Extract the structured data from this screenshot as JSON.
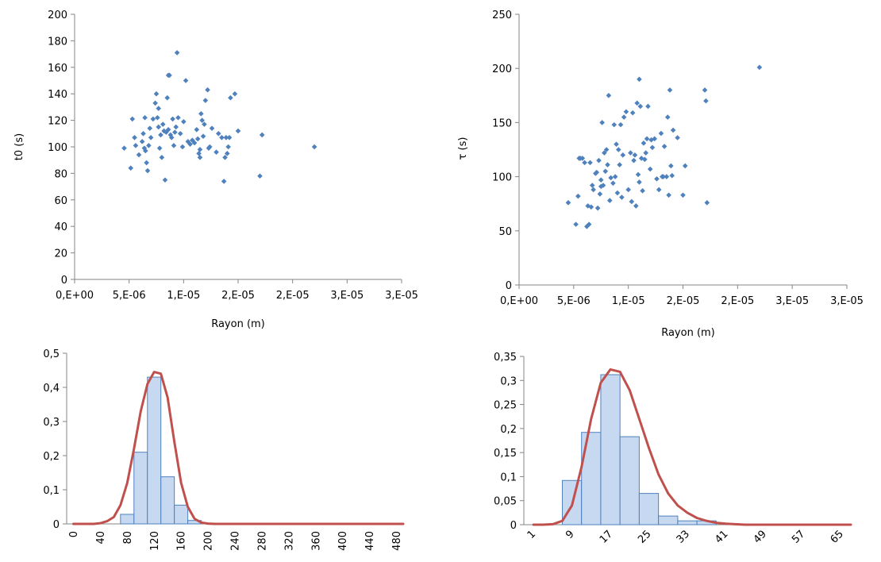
{
  "colors": {
    "marker": "#4f81bd",
    "bar_fill": "#c6d9f1",
    "bar_edge": "#4f81bd",
    "curve": "#c0504d",
    "axis": "#868686"
  },
  "chart_data": [
    {
      "type": "scatter",
      "xlabel": "Rayon (m)",
      "ylabel": "t0 (s)",
      "xlim": [
        0,
        3e-05
      ],
      "ylim": [
        0,
        200
      ],
      "xticks": [
        0,
        5e-06,
        1e-05,
        1.5e-05,
        2e-05,
        2.5e-05,
        3e-05
      ],
      "xtick_labels": [
        "0,E+00",
        "5,E-06",
        "1,E-05",
        "2,E-05",
        "2,E-05",
        "3,E-05",
        "3,E-05"
      ],
      "yticks": [
        0,
        20,
        40,
        60,
        80,
        100,
        120,
        140,
        160,
        180,
        200
      ],
      "ytick_labels": [
        "0",
        "20",
        "40",
        "60",
        "80",
        "100",
        "120",
        "140",
        "160",
        "180",
        "200"
      ],
      "x": [
        4.55e-06,
        5.15e-06,
        5.3e-06,
        5.5e-06,
        5.6e-06,
        5.9e-06,
        6.2e-06,
        6.3e-06,
        6.4e-06,
        6.45e-06,
        6.5e-06,
        6.6e-06,
        6.7e-06,
        6.8e-06,
        6.9e-06,
        7e-06,
        7.2e-06,
        7.4e-06,
        7.5e-06,
        7.6e-06,
        7.7e-06,
        7.8e-06,
        7.9e-06,
        8e-06,
        8.1e-06,
        8.2e-06,
        8.3e-06,
        8.4e-06,
        8.5e-06,
        8.6e-06,
        8.7e-06,
        8.8e-06,
        8.9e-06,
        9e-06,
        9.1e-06,
        9.2e-06,
        9.3e-06,
        9.4e-06,
        9.5e-06,
        9.7e-06,
        9.9e-06,
        1.02e-05,
        1.04e-05,
        1.06e-05,
        1.08e-05,
        1.1e-05,
        1.12e-05,
        1.13e-05,
        1.14e-05,
        1.15e-05,
        1.16e-05,
        1.17e-05,
        1.18e-05,
        1.19e-05,
        1.2e-05,
        1.22e-05,
        1.23e-05,
        1.24e-05,
        1.26e-05,
        1.3e-05,
        1.32e-05,
        1.35e-05,
        1.37e-05,
        1.38e-05,
        1.39e-05,
        1.4e-05,
        1.41e-05,
        1.42e-05,
        1.43e-05,
        1.47e-05,
        1.5e-05,
        1.7e-05,
        1.72e-05,
        2.2e-05,
        7.7e-06,
        8.6e-06,
        1.15e-05,
        1e-05
      ],
      "y": [
        99,
        84,
        121,
        107,
        101,
        94,
        104,
        110,
        99,
        122,
        97,
        88,
        82,
        101,
        114,
        107,
        121,
        133,
        140,
        122,
        115,
        99,
        109,
        92,
        117,
        112,
        75,
        111,
        137,
        154,
        154,
        109,
        107,
        121,
        101,
        111,
        115,
        171,
        122,
        110,
        100,
        150,
        104,
        102,
        105,
        103,
        113,
        106,
        95,
        92,
        125,
        120,
        108,
        117,
        135,
        143,
        99,
        100,
        114,
        96,
        110,
        107,
        74,
        92,
        107,
        95,
        100,
        107,
        137,
        140,
        112,
        78,
        109,
        100,
        129,
        113,
        98,
        119
      ]
    },
    {
      "type": "scatter",
      "xlabel": "Rayon (m)",
      "ylabel": "τ (s)",
      "xlim": [
        0,
        3e-05
      ],
      "ylim": [
        0,
        250
      ],
      "xticks": [
        0,
        5e-06,
        1e-05,
        1.5e-05,
        2e-05,
        2.5e-05,
        3e-05
      ],
      "xtick_labels": [
        "0,E+00",
        "5,E-06",
        "1,E-05",
        "2,E-05",
        "2,E-05",
        "3,E-05",
        "3,E-05"
      ],
      "yticks": [
        0,
        50,
        100,
        150,
        200,
        250
      ],
      "ytick_labels": [
        "0",
        "50",
        "100",
        "150",
        "200",
        "250"
      ],
      "x": [
        4.5e-06,
        5.2e-06,
        5.4e-06,
        5.5e-06,
        5.6e-06,
        5.8e-06,
        6e-06,
        6.2e-06,
        6.3e-06,
        6.4e-06,
        6.5e-06,
        6.6e-06,
        6.7e-06,
        6.8e-06,
        7e-06,
        7.1e-06,
        7.2e-06,
        7.3e-06,
        7.4e-06,
        7.5e-06,
        7.6e-06,
        7.7e-06,
        7.8e-06,
        7.9e-06,
        8e-06,
        8.1e-06,
        8.2e-06,
        8.3e-06,
        8.4e-06,
        8.6e-06,
        8.7e-06,
        8.8e-06,
        8.9e-06,
        9e-06,
        9.1e-06,
        9.2e-06,
        9.3e-06,
        9.4e-06,
        9.5e-06,
        9.6e-06,
        9.8e-06,
        1e-05,
        1.02e-05,
        1.03e-05,
        1.04e-05,
        1.05e-05,
        1.06e-05,
        1.07e-05,
        1.08e-05,
        1.09e-05,
        1.1e-05,
        1.11e-05,
        1.12e-05,
        1.13e-05,
        1.14e-05,
        1.15e-05,
        1.16e-05,
        1.17e-05,
        1.18e-05,
        1.2e-05,
        1.21e-05,
        1.22e-05,
        1.24e-05,
        1.26e-05,
        1.28e-05,
        1.3e-05,
        1.31e-05,
        1.32e-05,
        1.33e-05,
        1.35e-05,
        1.36e-05,
        1.37e-05,
        1.38e-05,
        1.39e-05,
        1.4e-05,
        1.41e-05,
        1.45e-05,
        1.5e-05,
        1.52e-05,
        1.7e-05,
        1.71e-05,
        1.72e-05,
        2.2e-05,
        7.5e-06,
        1.1e-05
      ],
      "y": [
        76,
        56,
        82,
        117,
        117,
        117,
        113,
        54,
        73,
        56,
        113,
        72,
        92,
        88,
        103,
        104,
        71,
        115,
        84,
        97,
        150,
        92,
        122,
        105,
        125,
        111,
        175,
        78,
        99,
        94,
        148,
        100,
        130,
        85,
        125,
        111,
        148,
        81,
        120,
        155,
        160,
        88,
        122,
        77,
        159,
        115,
        120,
        73,
        168,
        102,
        95,
        165,
        117,
        87,
        131,
        116,
        122,
        135,
        165,
        107,
        134,
        127,
        135,
        98,
        88,
        140,
        100,
        100,
        128,
        100,
        155,
        83,
        180,
        110,
        101,
        143,
        136,
        83,
        110,
        180,
        170,
        76,
        201,
        91,
        190
      ]
    },
    {
      "type": "bar",
      "categories": [
        "0",
        "20",
        "40",
        "60",
        "80",
        "100",
        "120",
        "140",
        "160",
        "180",
        "200",
        "220",
        "240",
        "260",
        "280",
        "300",
        "320",
        "340",
        "360",
        "380",
        "400",
        "420",
        "440",
        "460",
        "480"
      ],
      "xtick_labels": [
        "0",
        "40",
        "80",
        "120",
        "160",
        "200",
        "240",
        "280",
        "320",
        "360",
        "400",
        "440",
        "480"
      ],
      "values": [
        0,
        0,
        0,
        0,
        0.028,
        0.21,
        0.43,
        0.138,
        0.055,
        0.01,
        0,
        0,
        0,
        0,
        0,
        0,
        0,
        0,
        0,
        0,
        0,
        0,
        0,
        0,
        0
      ],
      "ylim": [
        0,
        0.5
      ],
      "yticks": [
        0,
        0.1,
        0.2,
        0.3,
        0.4,
        0.5
      ],
      "ytick_labels": [
        "0",
        "0,1",
        "0,2",
        "0,3",
        "0,4",
        "0,5"
      ],
      "curve": [
        0,
        0,
        0,
        0,
        0.002,
        0.008,
        0.02,
        0.055,
        0.12,
        0.22,
        0.33,
        0.41,
        0.445,
        0.44,
        0.37,
        0.24,
        0.12,
        0.05,
        0.015,
        0.004,
        0.001,
        0,
        0,
        0,
        0,
        0,
        0,
        0,
        0,
        0,
        0,
        0,
        0,
        0,
        0,
        0,
        0,
        0,
        0,
        0,
        0,
        0,
        0,
        0,
        0,
        0,
        0,
        0,
        0,
        0
      ],
      "curve_x_start": 0,
      "curve_x_step": 10
    },
    {
      "type": "bar",
      "categories": [
        "1",
        "5",
        "9",
        "13",
        "17",
        "21",
        "25",
        "29",
        "33",
        "37",
        "41",
        "45",
        "49",
        "53",
        "57",
        "61",
        "65"
      ],
      "xtick_labels": [
        "1",
        "9",
        "17",
        "25",
        "33",
        "41",
        "49",
        "57",
        "65"
      ],
      "values": [
        0,
        0,
        0.092,
        0.192,
        0.312,
        0.183,
        0.065,
        0.018,
        0.008,
        0.008,
        0,
        0,
        0,
        0,
        0,
        0,
        0
      ],
      "ylim": [
        0,
        0.35
      ],
      "yticks": [
        0,
        0.05,
        0.1,
        0.15,
        0.2,
        0.25,
        0.3,
        0.35
      ],
      "ytick_labels": [
        "0",
        "0,05",
        "0,1",
        "0,15",
        "0,2",
        "0,25",
        "0,3",
        "0,35"
      ],
      "curve": [
        0,
        0,
        0.001,
        0.008,
        0.04,
        0.12,
        0.22,
        0.295,
        0.323,
        0.318,
        0.28,
        0.22,
        0.16,
        0.105,
        0.065,
        0.04,
        0.025,
        0.014,
        0.008,
        0.004,
        0.002,
        0.001,
        0,
        0,
        0,
        0,
        0,
        0,
        0,
        0,
        0,
        0,
        0,
        0
      ],
      "curve_x_start": 1,
      "curve_x_step": 2
    }
  ]
}
